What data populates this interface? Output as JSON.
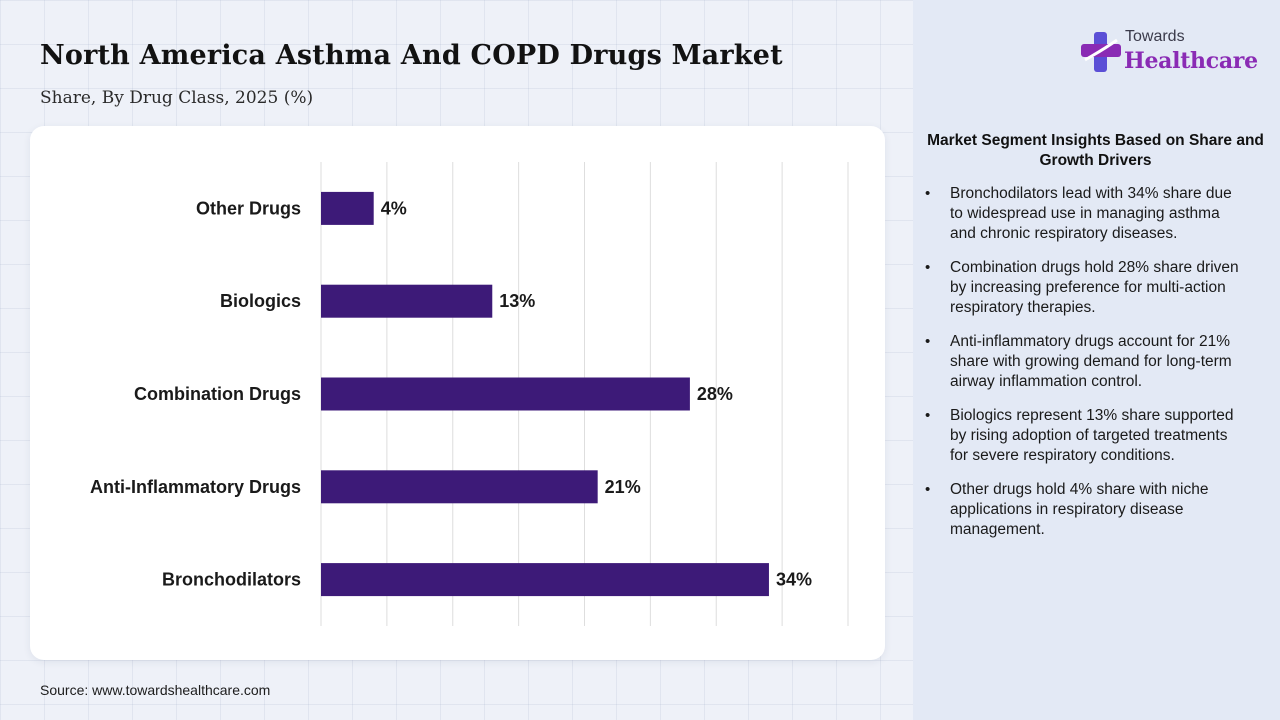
{
  "header": {
    "title": "North America Asthma And COPD Drugs Market",
    "subtitle": "Share, By Drug Class, 2025 (%)"
  },
  "brand": {
    "top": "Towards",
    "main": "Healthcare",
    "icon": "healthcare-cross-logo",
    "colors": {
      "primary": "#8a2bb4",
      "secondary": "#5b4fd6"
    }
  },
  "source": "Source: www.towardshealthcare.com",
  "chart_data": {
    "type": "bar",
    "orientation": "horizontal",
    "categories": [
      "Other Drugs",
      "Biologics",
      "Combination Drugs",
      "Anti-Inflammatory Drugs",
      "Bronchodilators"
    ],
    "values": [
      4,
      13,
      28,
      21,
      34
    ],
    "value_labels": [
      "4%",
      "13%",
      "28%",
      "21%",
      "34%"
    ],
    "unit": "%",
    "xlim": [
      0,
      40
    ],
    "grid": true,
    "bar_color": "#3d1a78"
  },
  "insights": {
    "title": "Market Segment Insights Based on Share and Growth Drivers",
    "items": [
      "Bronchodilators lead with 34% share due to widespread use in managing asthma and chronic respiratory diseases.",
      "Combination drugs hold 28% share driven by increasing preference for multi-action respiratory therapies.",
      "Anti-inflammatory drugs account for 21% share with growing demand for long-term airway inflammation control.",
      "Biologics represent 13% share supported by rising adoption of targeted treatments for severe respiratory conditions.",
      "Other drugs hold 4% share with niche applications in respiratory disease management."
    ]
  }
}
